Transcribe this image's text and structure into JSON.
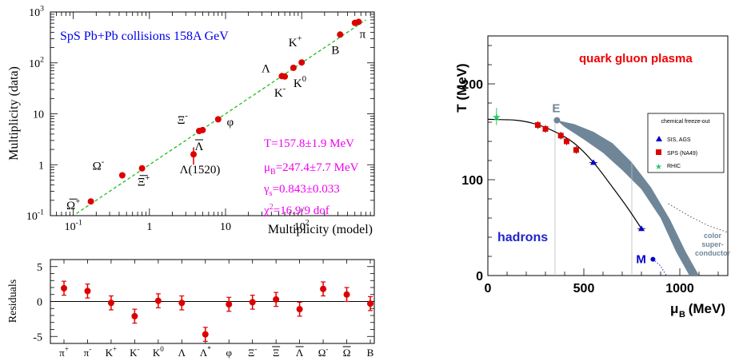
{
  "chart_data": [
    {
      "type": "scatter",
      "panel": "multiplicity comparison",
      "xlabel": "Multiplicity (model)",
      "ylabel": "Multiplicity (data)",
      "xscale": "log",
      "yscale": "log",
      "xlim": [
        0.05,
        900
      ],
      "ylim": [
        0.1,
        1000
      ],
      "x_tick_labels": [
        {
          "base": "10",
          "exp": "-1",
          "value": 0.1
        },
        {
          "base": "1",
          "exp": "",
          "value": 1
        },
        {
          "base": "10",
          "exp": "",
          "value": 10
        },
        {
          "base": "10",
          "exp": "2",
          "value": 100
        }
      ],
      "y_tick_labels": [
        {
          "base": "10",
          "exp": "-1",
          "value": 0.1
        },
        {
          "base": "1",
          "exp": "",
          "value": 1
        },
        {
          "base": "10",
          "exp": "",
          "value": 10
        },
        {
          "base": "10",
          "exp": "2",
          "value": 100
        },
        {
          "base": "10",
          "exp": "3",
          "value": 1000
        }
      ],
      "title_annotation": "SpS Pb+Pb collisions 158A GeV",
      "fit_annotations": [
        "T=157.8±1.9 MeV",
        "μB=247.4±7.7 MeV",
        "γs=0.843±0.033",
        "χ2=16.9/9 dof"
      ],
      "reference_line": "y = x (dashed)",
      "points": [
        {
          "label": "Ω+",
          "x": 0.17,
          "y": 0.19
        },
        {
          "label": "Ω-",
          "x": 0.44,
          "y": 0.62
        },
        {
          "label": "Ξ+",
          "x": 0.8,
          "y": 0.85
        },
        {
          "label": "Λ(1520)",
          "x": 3.8,
          "y": 1.6,
          "err": 0.6
        },
        {
          "label": "Λ",
          "x": 4.5,
          "y": 4.6
        },
        {
          "label": "Ξ-",
          "x": 5.0,
          "y": 4.8
        },
        {
          "label": "φ",
          "x": 8.0,
          "y": 7.8
        },
        {
          "label": "Λ",
          "x": 55,
          "y": 55
        },
        {
          "label": "K-",
          "x": 60,
          "y": 54
        },
        {
          "label": "K0",
          "x": 78,
          "y": 80
        },
        {
          "label": "K+",
          "x": 100,
          "y": 102
        },
        {
          "label": "B",
          "x": 320,
          "y": 360
        },
        {
          "label": "π",
          "x": 500,
          "y": 610
        },
        {
          "label": "π",
          "x": 560,
          "y": 640
        }
      ]
    },
    {
      "type": "scatter",
      "panel": "residuals",
      "ylabel": "Residuals",
      "ylim": [
        -6,
        6
      ],
      "y_ticks": [
        -5,
        0,
        5
      ],
      "categories": [
        {
          "base": "π",
          "sup": "+"
        },
        {
          "base": "π",
          "sup": "-"
        },
        {
          "base": "K",
          "sup": "+"
        },
        {
          "base": "K",
          "sup": "-"
        },
        {
          "base": "K",
          "sup": "0"
        },
        {
          "base": "Λ",
          "sup": ""
        },
        {
          "base": "Λ",
          "sup": "*"
        },
        {
          "base": "φ",
          "sup": ""
        },
        {
          "base": "Ξ",
          "sup": "-"
        },
        {
          "base": "Ξ",
          "sup": "",
          "bar": true
        },
        {
          "base": "Λ",
          "sup": "",
          "bar": true
        },
        {
          "base": "Ω",
          "sup": "-"
        },
        {
          "base": "Ω",
          "sup": "",
          "bar": true
        },
        {
          "base": "B",
          "sup": ""
        }
      ],
      "values": [
        1.9,
        1.5,
        -0.2,
        -2.1,
        0.1,
        -0.2,
        -4.7,
        -0.4,
        -0.1,
        0.3,
        -1.1,
        1.8,
        1.0,
        -0.3
      ],
      "errors": [
        1.0,
        1.0,
        1.0,
        1.0,
        1.0,
        1.0,
        1.0,
        1.0,
        1.0,
        1.0,
        1.0,
        1.0,
        1.0,
        1.0
      ]
    },
    {
      "type": "line",
      "panel": "phase diagram",
      "xlabel_main": "μ",
      "xlabel_sub": "B",
      "xlabel_unit": " (MeV)",
      "ylabel": "T (MeV)",
      "xlim": [
        0,
        1250
      ],
      "ylim": [
        0,
        250
      ],
      "x_ticks": [
        0,
        500,
        1000
      ],
      "y_ticks": [
        0,
        100,
        200
      ],
      "region_labels": {
        "qgp": "quark gluon plasma",
        "hadrons": "hadrons",
        "csc": [
          "color",
          "super-",
          "conductor"
        ],
        "E": "E",
        "M": "M"
      },
      "endpoint_E": {
        "x": 360,
        "y": 162
      },
      "point_M": {
        "x": 860,
        "y": 17
      },
      "freeze_out_curve": [
        [
          0,
          163
        ],
        [
          150,
          162
        ],
        [
          250,
          158
        ],
        [
          350,
          150
        ],
        [
          450,
          138
        ],
        [
          550,
          118
        ],
        [
          650,
          92
        ],
        [
          730,
          70
        ],
        [
          800,
          49
        ]
      ],
      "legend": {
        "title": "chemical freeze-out",
        "entries": [
          {
            "label": "SIS, AGS",
            "marker": "triangle",
            "color": "#0000cc"
          },
          {
            "label": "SPS (NA49)",
            "marker": "square",
            "color": "#dd0000"
          },
          {
            "label": "RHIC",
            "marker": "star",
            "color": "#22cc66"
          }
        ]
      },
      "series": [
        {
          "name": "SIS, AGS",
          "points": [
            [
              550,
              118
            ],
            [
              800,
              49
            ]
          ]
        },
        {
          "name": "SPS (NA49)",
          "points": [
            [
              260,
              157
            ],
            [
              300,
              153
            ],
            [
              380,
              146
            ],
            [
              410,
              140
            ],
            [
              460,
              131
            ]
          ],
          "err": 4
        },
        {
          "name": "RHIC",
          "points": [
            [
              45,
              166
            ]
          ],
          "err": 9
        }
      ]
    }
  ]
}
